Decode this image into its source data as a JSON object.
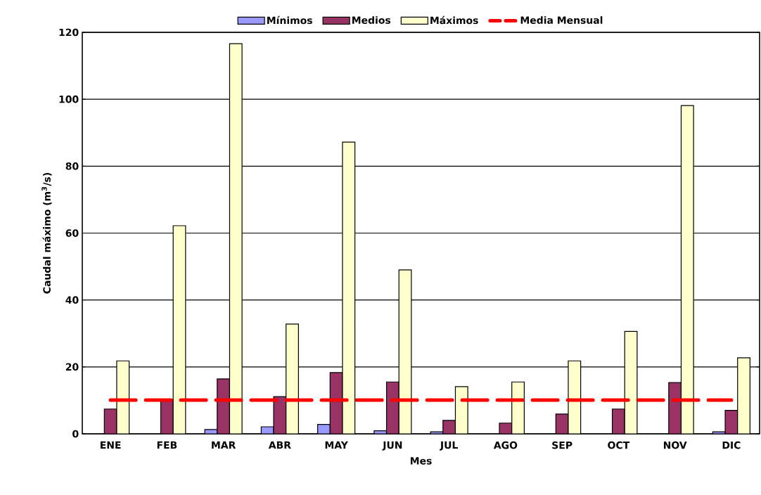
{
  "chart_data": {
    "type": "bar",
    "xlabel": "Mes",
    "ylabel": "Caudal máximo (m$^{3}$/s)",
    "categories": [
      "ENE",
      "FEB",
      "MAR",
      "ABR",
      "MAY",
      "JUN",
      "JUL",
      "AGO",
      "SEP",
      "OCT",
      "NOV",
      "DIC"
    ],
    "series": [
      {
        "name": "Mínimos",
        "color": "#9999ff",
        "values": [
          null,
          null,
          1.3,
          2.1,
          2.8,
          0.9,
          0.6,
          null,
          null,
          null,
          null,
          0.6
        ]
      },
      {
        "name": "Medios",
        "color": "#993366",
        "values": [
          7.4,
          10.3,
          16.4,
          11.1,
          18.3,
          15.5,
          4.0,
          3.2,
          5.9,
          7.4,
          15.3,
          7.0
        ]
      },
      {
        "name": "Máximos",
        "color": "#ffffcc",
        "values": [
          21.8,
          62.2,
          116.6,
          32.8,
          87.2,
          49,
          14.1,
          15.5,
          21.8,
          30.6,
          98.1,
          22.7
        ]
      },
      {
        "name": "Media Mensual",
        "type": "line",
        "line_style": "dashed",
        "color": "#ff0000",
        "values": [
          10.1,
          10.1,
          10.1,
          10.1,
          10.1,
          10.1,
          10.1,
          10.1,
          10.1,
          10.1,
          10.1,
          10.1
        ]
      }
    ],
    "ylim": [
      0,
      120
    ],
    "yticks": [
      0,
      20,
      40,
      60,
      80,
      100,
      120
    ],
    "grid": "y",
    "legend": "top",
    "marker": "none"
  }
}
